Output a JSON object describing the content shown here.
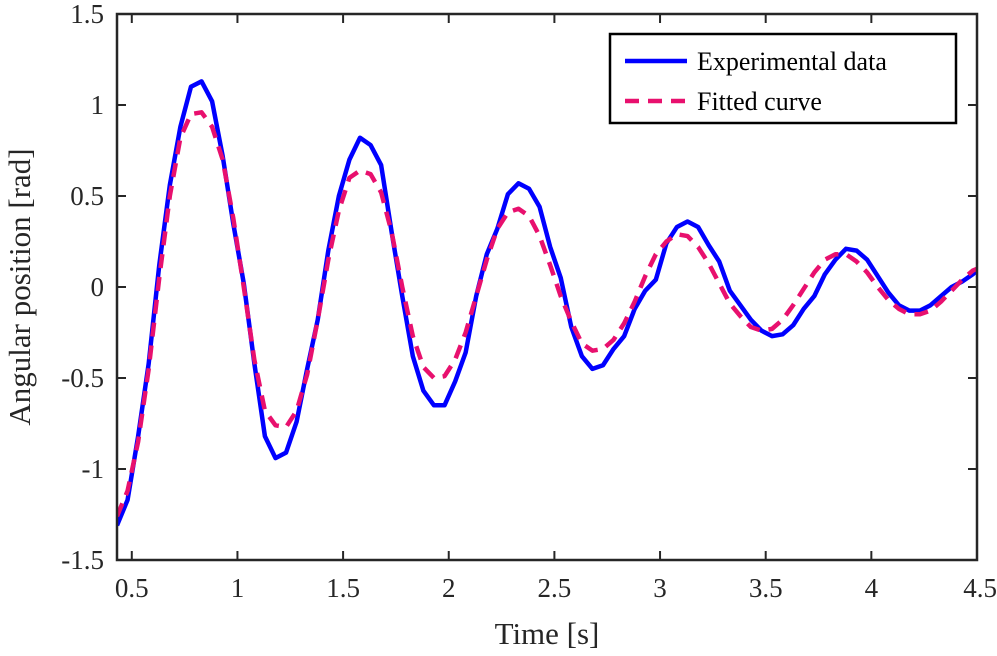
{
  "chart_data": {
    "type": "line",
    "title": "",
    "xlabel": "Time [s]",
    "ylabel": "Angular position [rad]",
    "xlim": [
      0.43,
      4.5
    ],
    "ylim": [
      -1.5,
      1.5
    ],
    "xticks": [
      0.5,
      1,
      1.5,
      2,
      2.5,
      3,
      3.5,
      4,
      4.5
    ],
    "xtick_labels": [
      "0.5",
      "1",
      "1.5",
      "2",
      "2.5",
      "3",
      "3.5",
      "4",
      "4.5"
    ],
    "yticks": [
      -1.5,
      -1,
      -0.5,
      0,
      0.5,
      1,
      1.5
    ],
    "ytick_labels": [
      "-1.5",
      "-1",
      "-0.5",
      "0",
      "0.5",
      "1",
      "1.5"
    ],
    "grid": false,
    "legend_position": "top-right",
    "series": [
      {
        "name": "Experimental data",
        "color": "#0000ff",
        "style": "solid",
        "x": [
          0.43,
          0.48,
          0.53,
          0.58,
          0.63,
          0.68,
          0.73,
          0.78,
          0.83,
          0.88,
          0.93,
          0.98,
          1.03,
          1.08,
          1.13,
          1.18,
          1.23,
          1.28,
          1.33,
          1.38,
          1.43,
          1.48,
          1.53,
          1.58,
          1.63,
          1.68,
          1.73,
          1.78,
          1.83,
          1.88,
          1.93,
          1.98,
          2.03,
          2.08,
          2.13,
          2.18,
          2.23,
          2.28,
          2.33,
          2.38,
          2.43,
          2.48,
          2.53,
          2.58,
          2.63,
          2.68,
          2.73,
          2.78,
          2.83,
          2.88,
          2.93,
          2.98,
          3.03,
          3.08,
          3.13,
          3.18,
          3.23,
          3.28,
          3.33,
          3.38,
          3.43,
          3.48,
          3.53,
          3.58,
          3.63,
          3.68,
          3.73,
          3.78,
          3.83,
          3.88,
          3.93,
          3.98,
          4.03,
          4.08,
          4.13,
          4.18,
          4.23,
          4.28,
          4.33,
          4.38,
          4.43,
          4.48,
          4.5
        ],
        "y": [
          -1.31,
          -1.17,
          -0.82,
          -0.42,
          0.12,
          0.56,
          0.88,
          1.1,
          1.13,
          1.02,
          0.72,
          0.35,
          0.02,
          -0.42,
          -0.82,
          -0.94,
          -0.91,
          -0.74,
          -0.45,
          -0.18,
          0.2,
          0.5,
          0.7,
          0.82,
          0.78,
          0.67,
          0.3,
          -0.05,
          -0.38,
          -0.57,
          -0.65,
          -0.65,
          -0.52,
          -0.36,
          -0.05,
          0.18,
          0.32,
          0.51,
          0.57,
          0.54,
          0.44,
          0.22,
          0.05,
          -0.22,
          -0.38,
          -0.45,
          -0.43,
          -0.34,
          -0.27,
          -0.12,
          -0.02,
          0.04,
          0.24,
          0.33,
          0.36,
          0.33,
          0.23,
          0.14,
          -0.02,
          -0.1,
          -0.18,
          -0.24,
          -0.27,
          -0.26,
          -0.21,
          -0.12,
          -0.05,
          0.07,
          0.15,
          0.21,
          0.2,
          0.15,
          0.06,
          -0.03,
          -0.1,
          -0.13,
          -0.13,
          -0.1,
          -0.05,
          0.0,
          0.03,
          0.07,
          0.09
        ]
      },
      {
        "name": "Fitted curve",
        "color": "#e8106e",
        "style": "dashed",
        "x": [
          0.43,
          0.48,
          0.53,
          0.58,
          0.63,
          0.68,
          0.73,
          0.78,
          0.83,
          0.88,
          0.93,
          0.98,
          1.03,
          1.08,
          1.13,
          1.18,
          1.23,
          1.28,
          1.33,
          1.38,
          1.43,
          1.48,
          1.53,
          1.58,
          1.63,
          1.68,
          1.73,
          1.78,
          1.83,
          1.88,
          1.93,
          1.98,
          2.03,
          2.08,
          2.13,
          2.18,
          2.23,
          2.28,
          2.33,
          2.38,
          2.43,
          2.48,
          2.53,
          2.58,
          2.63,
          2.68,
          2.73,
          2.78,
          2.83,
          2.88,
          2.93,
          2.98,
          3.03,
          3.08,
          3.13,
          3.18,
          3.23,
          3.28,
          3.33,
          3.38,
          3.43,
          3.48,
          3.53,
          3.58,
          3.63,
          3.68,
          3.73,
          3.78,
          3.83,
          3.88,
          3.93,
          3.98,
          4.03,
          4.08,
          4.13,
          4.18,
          4.23,
          4.28,
          4.33,
          4.38,
          4.43,
          4.48,
          4.5
        ],
        "y": [
          -1.26,
          -1.12,
          -0.85,
          -0.45,
          0.05,
          0.5,
          0.82,
          0.95,
          0.96,
          0.88,
          0.7,
          0.38,
          0.0,
          -0.4,
          -0.68,
          -0.76,
          -0.77,
          -0.68,
          -0.48,
          -0.18,
          0.15,
          0.42,
          0.6,
          0.64,
          0.62,
          0.52,
          0.3,
          0.0,
          -0.27,
          -0.44,
          -0.5,
          -0.49,
          -0.4,
          -0.25,
          -0.05,
          0.15,
          0.32,
          0.41,
          0.43,
          0.39,
          0.28,
          0.12,
          -0.05,
          -0.19,
          -0.31,
          -0.35,
          -0.34,
          -0.29,
          -0.2,
          -0.08,
          0.06,
          0.18,
          0.25,
          0.29,
          0.28,
          0.22,
          0.13,
          0.02,
          -0.09,
          -0.16,
          -0.22,
          -0.24,
          -0.23,
          -0.18,
          -0.1,
          -0.01,
          0.08,
          0.15,
          0.18,
          0.18,
          0.14,
          0.08,
          0.0,
          -0.07,
          -0.12,
          -0.15,
          -0.15,
          -0.13,
          -0.08,
          -0.02,
          0.04,
          0.09,
          0.1
        ]
      }
    ]
  }
}
